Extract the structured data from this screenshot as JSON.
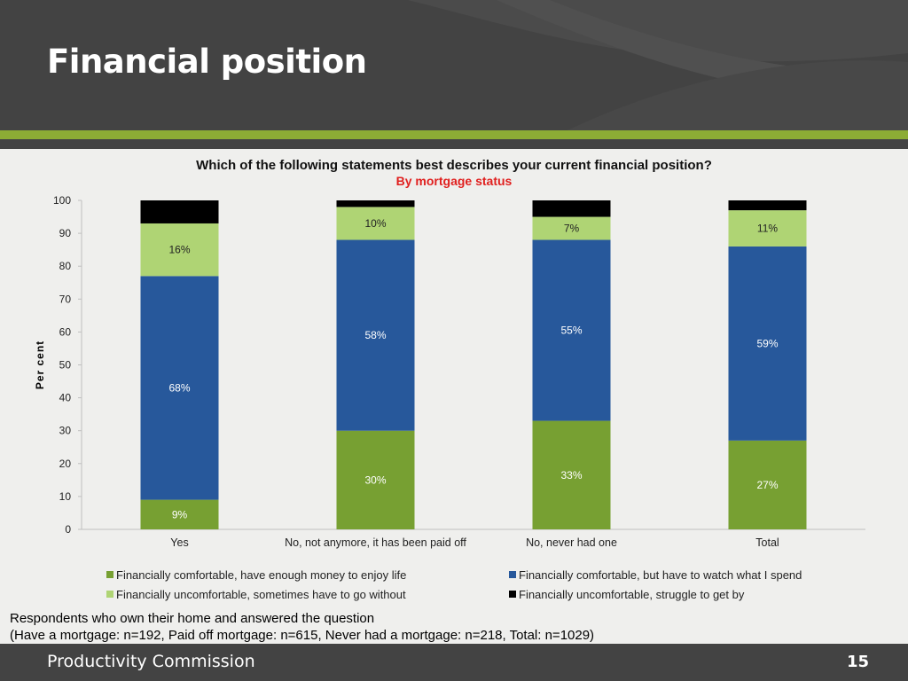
{
  "slide": {
    "title": "Financial position",
    "footer_org": "Productivity Commission",
    "page_number": "15",
    "note_line1": "Respondents who own their home and answered the question",
    "note_line2": "(Have a mortgage: n=192, Paid off mortgage: n=615, Never had a mortgage: n=218, Total: n=1029)"
  },
  "chart_data": {
    "type": "bar",
    "stacked": true,
    "title": "Which of the following statements best describes your current financial position?",
    "subtitle": "By mortgage status",
    "xlabel": "",
    "ylabel": "Per cent",
    "ylim": [
      0,
      100
    ],
    "yticks": [
      "0",
      "10",
      "20",
      "30",
      "40",
      "50",
      "60",
      "70",
      "80",
      "90",
      "100"
    ],
    "categories": [
      "Yes",
      "No, not anymore, it has been paid off",
      "No, never had one",
      "Total"
    ],
    "legend_position": "bottom",
    "grid": false,
    "series": [
      {
        "name": "Financially comfortable, have enough money to enjoy life",
        "color": "#77a032",
        "values": [
          9,
          30,
          33,
          27
        ],
        "labels": [
          "9%",
          "30%",
          "33%",
          "27%"
        ]
      },
      {
        "name": "Financially comfortable, but have to watch what I spend",
        "color": "#27589b",
        "values": [
          68,
          58,
          55,
          59
        ],
        "labels": [
          "68%",
          "58%",
          "55%",
          "59%"
        ]
      },
      {
        "name": "Financially uncomfortable, sometimes have to go without",
        "color": "#afd474",
        "values": [
          16,
          10,
          7,
          11
        ],
        "labels": [
          "16%",
          "10%",
          "7%",
          "11%"
        ]
      },
      {
        "name": "Financially uncomfortable, struggle to get by",
        "color": "#000000",
        "values": [
          7,
          2,
          5,
          3.5
        ],
        "labels": []
      }
    ]
  }
}
